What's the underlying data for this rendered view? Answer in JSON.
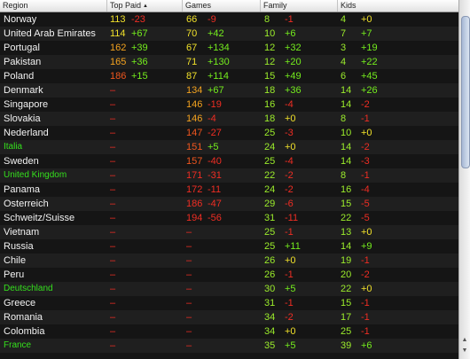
{
  "header": {
    "region": "Region",
    "top_paid": "Top Paid",
    "sort_icon": "sort-ascending-icon",
    "games": "Games",
    "family": "Family",
    "kids": "Kids"
  },
  "rows": [
    {
      "region": "Norway",
      "top_rank": "113",
      "top_delta": "-23",
      "game_rank": "66",
      "game_delta": "-9",
      "family_rank": "8",
      "family_delta": "-1",
      "kids_rank": "4",
      "kids_delta": "+0"
    },
    {
      "region": "United Arab Emirates",
      "top_rank": "114",
      "top_delta": "+67",
      "game_rank": "70",
      "game_delta": "+42",
      "family_rank": "10",
      "family_delta": "+6",
      "kids_rank": "7",
      "kids_delta": "+7"
    },
    {
      "region": "Portugal",
      "top_rank": "162",
      "top_delta": "+39",
      "game_rank": "67",
      "game_delta": "+134",
      "family_rank": "12",
      "family_delta": "+32",
      "kids_rank": "3",
      "kids_delta": "+19"
    },
    {
      "region": "Pakistan",
      "top_rank": "165",
      "top_delta": "+36",
      "game_rank": "71",
      "game_delta": "+130",
      "family_rank": "12",
      "family_delta": "+20",
      "kids_rank": "4",
      "kids_delta": "+22"
    },
    {
      "region": "Poland",
      "top_rank": "186",
      "top_delta": "+15",
      "game_rank": "87",
      "game_delta": "+114",
      "family_rank": "15",
      "family_delta": "+49",
      "kids_rank": "6",
      "kids_delta": "+45"
    },
    {
      "region": "Denmark",
      "top_rank": "–",
      "top_delta": "",
      "game_rank": "134",
      "game_delta": "+67",
      "family_rank": "18",
      "family_delta": "+36",
      "kids_rank": "14",
      "kids_delta": "+26"
    },
    {
      "region": "Singapore",
      "top_rank": "–",
      "top_delta": "",
      "game_rank": "146",
      "game_delta": "-19",
      "family_rank": "16",
      "family_delta": "-4",
      "kids_rank": "14",
      "kids_delta": "-2"
    },
    {
      "region": "Slovakia",
      "top_rank": "–",
      "top_delta": "",
      "game_rank": "146",
      "game_delta": "-4",
      "family_rank": "18",
      "family_delta": "+0",
      "kids_rank": "8",
      "kids_delta": "-1"
    },
    {
      "region": "Nederland",
      "top_rank": "–",
      "top_delta": "",
      "game_rank": "147",
      "game_delta": "-27",
      "family_rank": "25",
      "family_delta": "-3",
      "kids_rank": "10",
      "kids_delta": "+0"
    },
    {
      "region": "Italia",
      "top_rank": "–",
      "top_delta": "",
      "game_rank": "151",
      "game_delta": "+5",
      "family_rank": "24",
      "family_delta": "+0",
      "kids_rank": "14",
      "kids_delta": "-2"
    },
    {
      "region": "Sweden",
      "top_rank": "–",
      "top_delta": "",
      "game_rank": "157",
      "game_delta": "-40",
      "family_rank": "25",
      "family_delta": "-4",
      "kids_rank": "14",
      "kids_delta": "-3"
    },
    {
      "region": "United Kingdom",
      "top_rank": "–",
      "top_delta": "",
      "game_rank": "171",
      "game_delta": "-31",
      "family_rank": "22",
      "family_delta": "-2",
      "kids_rank": "8",
      "kids_delta": "-1"
    },
    {
      "region": "Panama",
      "top_rank": "–",
      "top_delta": "",
      "game_rank": "172",
      "game_delta": "-11",
      "family_rank": "24",
      "family_delta": "-2",
      "kids_rank": "16",
      "kids_delta": "-4"
    },
    {
      "region": "Osterreich",
      "top_rank": "–",
      "top_delta": "",
      "game_rank": "186",
      "game_delta": "-47",
      "family_rank": "29",
      "family_delta": "-6",
      "kids_rank": "15",
      "kids_delta": "-5"
    },
    {
      "region": "Schweitz/Suisse",
      "top_rank": "–",
      "top_delta": "",
      "game_rank": "194",
      "game_delta": "-56",
      "family_rank": "31",
      "family_delta": "-11",
      "kids_rank": "22",
      "kids_delta": "-5"
    },
    {
      "region": "Vietnam",
      "top_rank": "–",
      "top_delta": "",
      "game_rank": "–",
      "game_delta": "",
      "family_rank": "25",
      "family_delta": "-1",
      "kids_rank": "13",
      "kids_delta": "+0"
    },
    {
      "region": "Russia",
      "top_rank": "–",
      "top_delta": "",
      "game_rank": "–",
      "game_delta": "",
      "family_rank": "25",
      "family_delta": "+11",
      "kids_rank": "14",
      "kids_delta": "+9"
    },
    {
      "region": "Chile",
      "top_rank": "–",
      "top_delta": "",
      "game_rank": "–",
      "game_delta": "",
      "family_rank": "26",
      "family_delta": "+0",
      "kids_rank": "19",
      "kids_delta": "-1"
    },
    {
      "region": "Peru",
      "top_rank": "–",
      "top_delta": "",
      "game_rank": "–",
      "game_delta": "",
      "family_rank": "26",
      "family_delta": "-1",
      "kids_rank": "20",
      "kids_delta": "-2"
    },
    {
      "region": "Deutschland",
      "top_rank": "–",
      "top_delta": "",
      "game_rank": "–",
      "game_delta": "",
      "family_rank": "30",
      "family_delta": "+5",
      "kids_rank": "22",
      "kids_delta": "+0"
    },
    {
      "region": "Greece",
      "top_rank": "–",
      "top_delta": "",
      "game_rank": "–",
      "game_delta": "",
      "family_rank": "31",
      "family_delta": "-1",
      "kids_rank": "15",
      "kids_delta": "-1"
    },
    {
      "region": "Romania",
      "top_rank": "–",
      "top_delta": "",
      "game_rank": "–",
      "game_delta": "",
      "family_rank": "34",
      "family_delta": "-2",
      "kids_rank": "17",
      "kids_delta": "-1"
    },
    {
      "region": "Colombia",
      "top_rank": "–",
      "top_delta": "",
      "game_rank": "–",
      "game_delta": "",
      "family_rank": "34",
      "family_delta": "+0",
      "kids_rank": "25",
      "kids_delta": "-1"
    },
    {
      "region": "France",
      "top_rank": "–",
      "top_delta": "",
      "game_rank": "–",
      "game_delta": "",
      "family_rank": "35",
      "family_delta": "+5",
      "kids_rank": "39",
      "kids_delta": "+6"
    }
  ],
  "highlighted_regions": [
    "Italia",
    "United Kingdom",
    "Deutschland",
    "France"
  ],
  "colors": {
    "highlight_region": "#35e11d",
    "rank_yellow": "#f0e02a",
    "rank_orange": "#f3a21f",
    "rank_deep_orange": "#f0561e",
    "rank_red": "#ef2d23",
    "rank_green": "#9bec2b",
    "delta_positive": "#74ec1d",
    "delta_negative": "#ef2d23",
    "delta_zero": "#f0e02a"
  },
  "scrollbar": {
    "up_icon": "scroll-up-arrow-icon",
    "down_icon": "scroll-down-arrow-icon"
  }
}
